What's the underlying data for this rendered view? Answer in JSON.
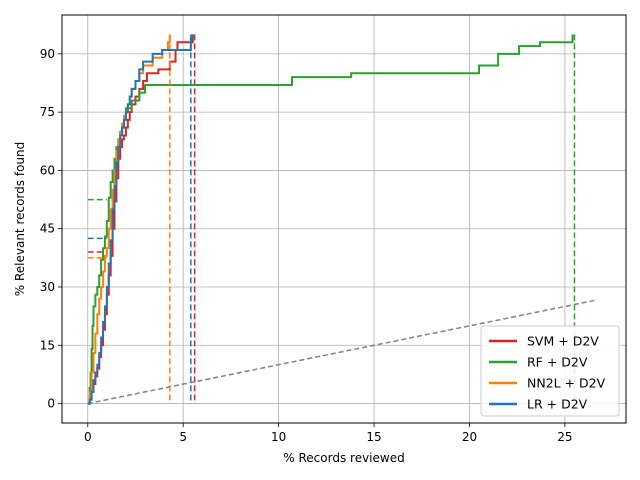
{
  "chart_data": {
    "type": "line",
    "title": "",
    "xlabel": "% Records reviewed",
    "ylabel": "% Relevant records found",
    "xlim": [
      -1.35,
      28.2
    ],
    "ylim": [
      -5,
      100
    ],
    "xticks": [
      0,
      5,
      10,
      15,
      20,
      25
    ],
    "yticks": [
      0,
      15,
      30,
      45,
      60,
      75,
      90
    ],
    "grid": true,
    "legend_position": "lower-right",
    "series": [
      {
        "name": "SVM + D2V",
        "color": "#d62728",
        "points": [
          [
            0,
            0
          ],
          [
            0.1,
            1
          ],
          [
            0.2,
            3
          ],
          [
            0.3,
            5
          ],
          [
            0.4,
            7
          ],
          [
            0.5,
            9
          ],
          [
            0.6,
            12
          ],
          [
            0.7,
            15
          ],
          [
            0.8,
            19
          ],
          [
            0.9,
            23
          ],
          [
            1.0,
            28
          ],
          [
            1.1,
            33
          ],
          [
            1.2,
            38
          ],
          [
            1.3,
            45
          ],
          [
            1.4,
            52
          ],
          [
            1.5,
            58
          ],
          [
            1.6,
            63
          ],
          [
            1.7,
            66
          ],
          [
            1.8,
            68
          ],
          [
            1.9,
            69
          ],
          [
            2.0,
            71
          ],
          [
            2.1,
            73
          ],
          [
            2.2,
            75
          ],
          [
            2.3,
            77
          ],
          [
            2.5,
            79
          ],
          [
            2.7,
            81
          ],
          [
            2.9,
            83
          ],
          [
            3.1,
            85
          ],
          [
            3.5,
            85
          ],
          [
            3.7,
            86
          ],
          [
            4.2,
            86
          ],
          [
            4.3,
            88
          ],
          [
            4.6,
            91
          ],
          [
            4.7,
            93
          ],
          [
            5.5,
            93
          ],
          [
            5.5,
            95
          ]
        ],
        "plateau_y": 39,
        "stop_x": 5.6
      },
      {
        "name": "RF + D2V",
        "color": "#2ca02c",
        "points": [
          [
            0,
            0
          ],
          [
            0.1,
            4
          ],
          [
            0.15,
            8
          ],
          [
            0.2,
            14
          ],
          [
            0.25,
            20
          ],
          [
            0.3,
            25
          ],
          [
            0.4,
            28
          ],
          [
            0.5,
            30
          ],
          [
            0.6,
            33
          ],
          [
            0.7,
            37
          ],
          [
            0.8,
            40
          ],
          [
            0.9,
            43
          ],
          [
            1.0,
            47
          ],
          [
            1.1,
            53
          ],
          [
            1.2,
            57
          ],
          [
            1.3,
            60
          ],
          [
            1.4,
            63
          ],
          [
            1.5,
            66
          ],
          [
            1.6,
            68
          ],
          [
            1.7,
            70
          ],
          [
            1.8,
            72
          ],
          [
            1.9,
            74
          ],
          [
            2.0,
            76
          ],
          [
            2.3,
            78
          ],
          [
            2.7,
            80
          ],
          [
            3.0,
            82
          ],
          [
            10.7,
            82
          ],
          [
            10.7,
            84
          ],
          [
            13.8,
            84
          ],
          [
            13.8,
            85
          ],
          [
            20.5,
            85
          ],
          [
            20.5,
            87
          ],
          [
            21.5,
            87
          ],
          [
            21.5,
            90
          ],
          [
            22.6,
            90
          ],
          [
            22.6,
            92
          ],
          [
            23.7,
            92
          ],
          [
            23.7,
            93
          ],
          [
            25.4,
            93
          ],
          [
            25.4,
            95
          ]
        ],
        "plateau_y": 52.5,
        "stop_x": 25.5
      },
      {
        "name": "NN2L + D2V",
        "color": "#ff7f0e",
        "points": [
          [
            0,
            0
          ],
          [
            0.1,
            3
          ],
          [
            0.2,
            8
          ],
          [
            0.3,
            13
          ],
          [
            0.4,
            18
          ],
          [
            0.5,
            23
          ],
          [
            0.6,
            27
          ],
          [
            0.7,
            30
          ],
          [
            0.8,
            34
          ],
          [
            0.9,
            38
          ],
          [
            1.0,
            40
          ],
          [
            1.1,
            45
          ],
          [
            1.2,
            50
          ],
          [
            1.3,
            55
          ],
          [
            1.4,
            60
          ],
          [
            1.5,
            65
          ],
          [
            1.6,
            68
          ],
          [
            1.7,
            70
          ],
          [
            1.8,
            72
          ],
          [
            1.9,
            74
          ],
          [
            2.0,
            75
          ],
          [
            2.1,
            77
          ],
          [
            2.2,
            79
          ],
          [
            2.3,
            81
          ],
          [
            2.5,
            83
          ],
          [
            2.7,
            85
          ],
          [
            2.9,
            87
          ],
          [
            3.4,
            89
          ],
          [
            3.9,
            91
          ],
          [
            4.2,
            93
          ],
          [
            4.3,
            95
          ]
        ],
        "plateau_y": 37.5,
        "stop_x": 4.3
      },
      {
        "name": "LR + D2V",
        "color": "#1f77b4",
        "points": [
          [
            0,
            0
          ],
          [
            0.1,
            1
          ],
          [
            0.2,
            3
          ],
          [
            0.3,
            6
          ],
          [
            0.4,
            8
          ],
          [
            0.5,
            10
          ],
          [
            0.6,
            13
          ],
          [
            0.7,
            17
          ],
          [
            0.8,
            21
          ],
          [
            0.9,
            25
          ],
          [
            1.0,
            30
          ],
          [
            1.1,
            36
          ],
          [
            1.2,
            42
          ],
          [
            1.3,
            50
          ],
          [
            1.4,
            56
          ],
          [
            1.5,
            62
          ],
          [
            1.6,
            66
          ],
          [
            1.7,
            69
          ],
          [
            1.8,
            71
          ],
          [
            1.9,
            73
          ],
          [
            2.0,
            75
          ],
          [
            2.1,
            77
          ],
          [
            2.2,
            79
          ],
          [
            2.3,
            81
          ],
          [
            2.5,
            83
          ],
          [
            2.7,
            86
          ],
          [
            2.9,
            88
          ],
          [
            3.4,
            90
          ],
          [
            3.9,
            91
          ],
          [
            5.4,
            91
          ],
          [
            5.4,
            94
          ],
          [
            5.5,
            95
          ]
        ],
        "plateau_y": 42.5,
        "stop_x": 5.4
      }
    ],
    "baseline": {
      "color": "#808080",
      "points": [
        [
          0,
          0
        ],
        [
          26.7,
          26.7
        ]
      ]
    }
  }
}
